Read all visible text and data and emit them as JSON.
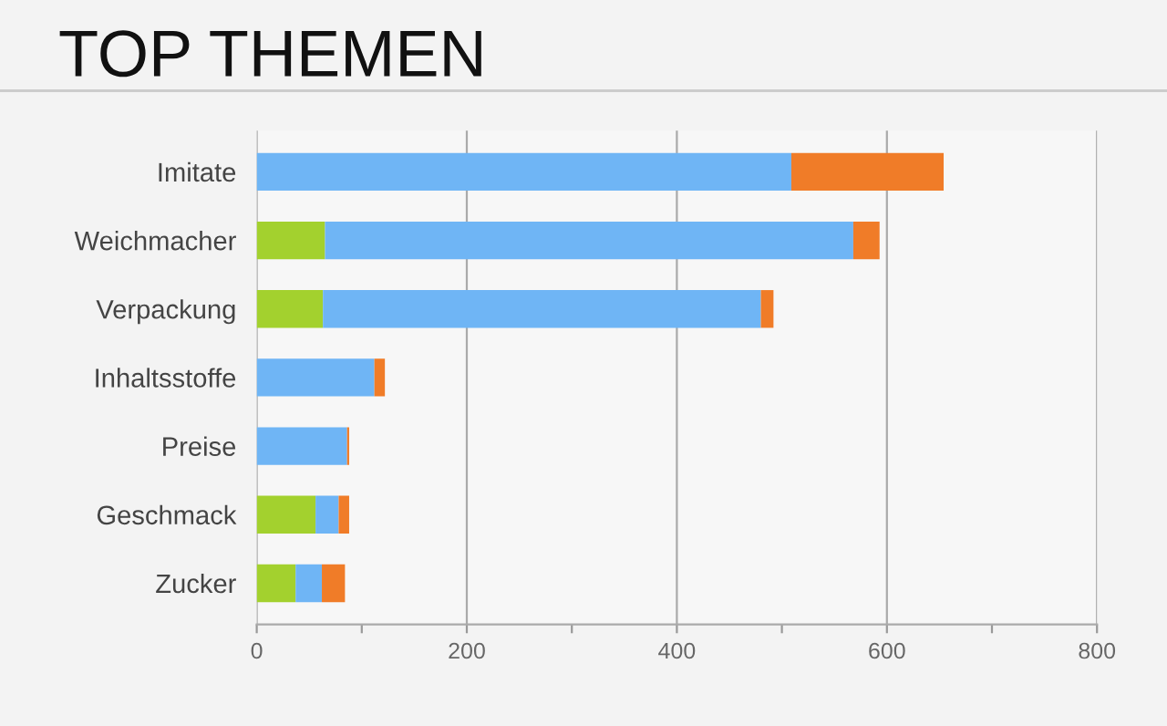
{
  "chart_data": {
    "type": "bar",
    "orientation": "horizontal",
    "stacked": true,
    "title": "TOP THEMEN",
    "categories": [
      "Imitate",
      "Weichmacher",
      "Verpackung",
      "Inhaltsstoffe",
      "Preise",
      "Geschmack",
      "Zucker"
    ],
    "series": [
      {
        "color": "#a3d12e",
        "values": [
          0,
          65,
          63,
          0,
          0,
          56,
          37
        ]
      },
      {
        "color": "#6fb5f5",
        "values": [
          509,
          503,
          417,
          112,
          86,
          22,
          25
        ]
      },
      {
        "color": "#f07c28",
        "values": [
          145,
          25,
          12,
          10,
          2,
          10,
          22
        ]
      }
    ],
    "xlim": [
      0,
      800
    ],
    "xticks": [
      0,
      {
        "value": 100,
        "label": null
      },
      200,
      {
        "value": 300,
        "label": null
      },
      400,
      {
        "value": 500,
        "label": null
      },
      600,
      {
        "value": 700,
        "label": null
      },
      800
    ],
    "grid": "x",
    "legend": false
  }
}
